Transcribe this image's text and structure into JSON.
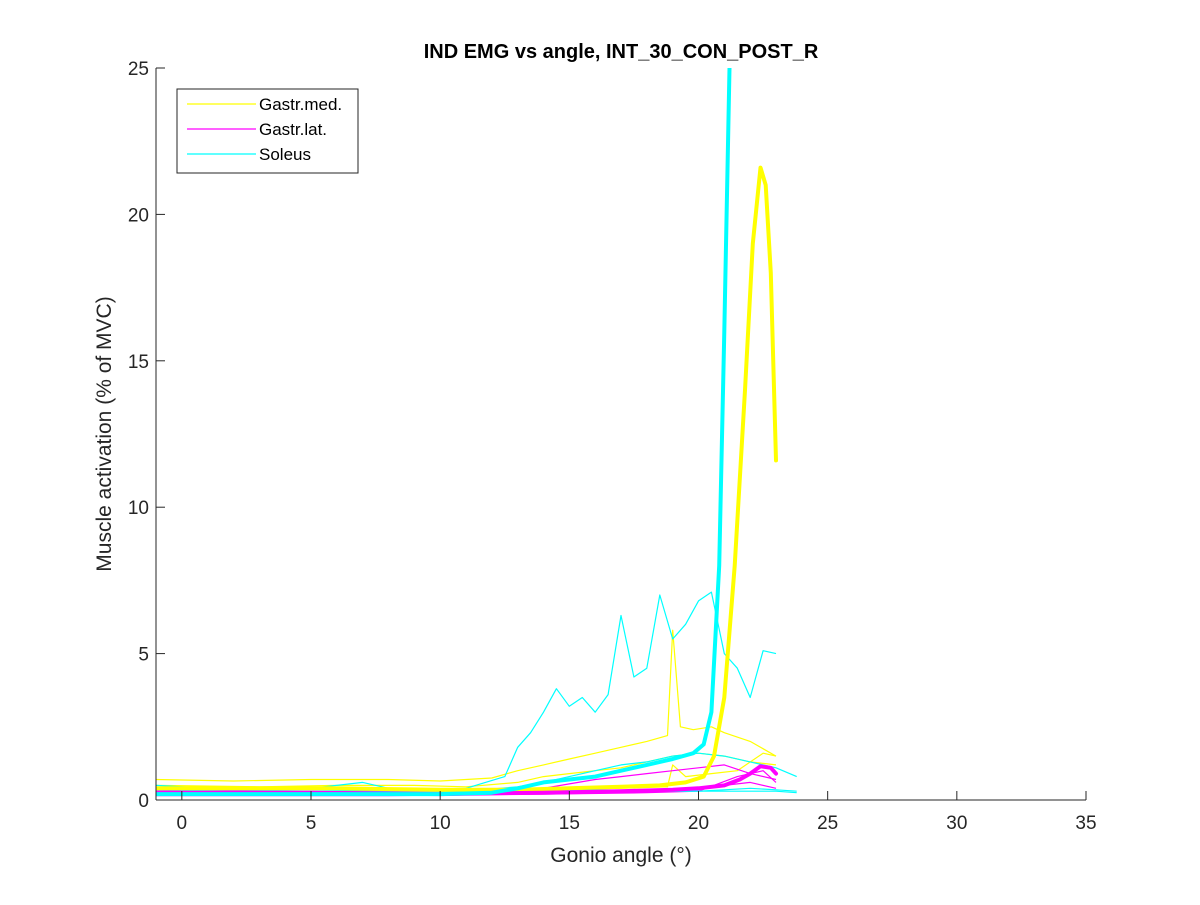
{
  "chart_data": {
    "type": "line",
    "title": "IND EMG vs angle, INT_30_CON_POST_R",
    "xlabel": "Gonio angle (°)",
    "ylabel": "Muscle activation (% of MVC)",
    "xlim": [
      -1,
      35
    ],
    "ylim": [
      0,
      25
    ],
    "x_ticks": [
      0,
      5,
      10,
      15,
      20,
      25,
      30,
      35
    ],
    "y_ticks": [
      0,
      5,
      10,
      15,
      20,
      25
    ],
    "grid": false,
    "legend_position": "top-left",
    "legend": [
      {
        "name": "Gastr.med.",
        "color": "#ffff00"
      },
      {
        "name": "Gastr.lat.",
        "color": "#ff00ff"
      },
      {
        "name": "Soleus",
        "color": "#00ffff"
      }
    ],
    "series": [
      {
        "name": "Gastr.med.",
        "color": "#ffff00",
        "style": "mean",
        "points": [
          [
            -1,
            0.4
          ],
          [
            2,
            0.4
          ],
          [
            6,
            0.4
          ],
          [
            10,
            0.35
          ],
          [
            13,
            0.35
          ],
          [
            15,
            0.4
          ],
          [
            17,
            0.45
          ],
          [
            18.5,
            0.5
          ],
          [
            19.5,
            0.6
          ],
          [
            20.2,
            0.8
          ],
          [
            20.6,
            1.5
          ],
          [
            21,
            3.5
          ],
          [
            21.4,
            8
          ],
          [
            21.8,
            14
          ],
          [
            22.1,
            19
          ],
          [
            22.4,
            21.6
          ],
          [
            22.6,
            21
          ],
          [
            22.8,
            18
          ],
          [
            23,
            11.6
          ]
        ]
      },
      {
        "name": "Gastr.lat.",
        "color": "#ff00ff",
        "style": "mean",
        "points": [
          [
            -1,
            0.25
          ],
          [
            5,
            0.25
          ],
          [
            10,
            0.2
          ],
          [
            14,
            0.25
          ],
          [
            17,
            0.3
          ],
          [
            19,
            0.35
          ],
          [
            20,
            0.4
          ],
          [
            21,
            0.5
          ],
          [
            21.6,
            0.7
          ],
          [
            22,
            0.9
          ],
          [
            22.4,
            1.15
          ],
          [
            22.8,
            1.1
          ],
          [
            23,
            0.9
          ]
        ]
      },
      {
        "name": "Soleus",
        "color": "#00ffff",
        "style": "mean",
        "points": [
          [
            -1,
            0.2
          ],
          [
            5,
            0.2
          ],
          [
            10,
            0.2
          ],
          [
            12,
            0.25
          ],
          [
            13,
            0.4
          ],
          [
            14,
            0.6
          ],
          [
            15,
            0.7
          ],
          [
            16,
            0.8
          ],
          [
            17,
            1.0
          ],
          [
            18,
            1.2
          ],
          [
            19,
            1.4
          ],
          [
            19.8,
            1.6
          ],
          [
            20.2,
            1.9
          ],
          [
            20.5,
            3
          ],
          [
            20.8,
            8
          ],
          [
            21.0,
            16
          ],
          [
            21.2,
            25
          ]
        ]
      }
    ],
    "trials": [
      {
        "series": "Gastr.med.",
        "color": "#ffff00",
        "points": [
          [
            -1,
            0.7
          ],
          [
            2,
            0.65
          ],
          [
            5,
            0.7
          ],
          [
            8,
            0.7
          ],
          [
            10,
            0.65
          ],
          [
            12,
            0.75
          ],
          [
            13,
            1.0
          ],
          [
            14,
            1.2
          ],
          [
            15,
            1.4
          ],
          [
            16,
            1.6
          ],
          [
            17,
            1.8
          ],
          [
            18,
            2.0
          ],
          [
            18.8,
            2.2
          ],
          [
            19,
            5.8
          ],
          [
            19.3,
            2.5
          ],
          [
            19.8,
            2.4
          ],
          [
            20.5,
            2.5
          ],
          [
            21,
            2.3
          ],
          [
            22,
            2.0
          ],
          [
            23,
            1.5
          ]
        ]
      },
      {
        "series": "Gastr.med.",
        "color": "#ffff00",
        "points": [
          [
            -1,
            0.5
          ],
          [
            3,
            0.45
          ],
          [
            6,
            0.5
          ],
          [
            9,
            0.5
          ],
          [
            11,
            0.45
          ],
          [
            13,
            0.6
          ],
          [
            14,
            0.8
          ],
          [
            15,
            0.9
          ],
          [
            16,
            1.0
          ],
          [
            17,
            1.1
          ],
          [
            18,
            1.3
          ],
          [
            19,
            1.5
          ],
          [
            20,
            1.6
          ],
          [
            21,
            1.5
          ],
          [
            22,
            1.3
          ],
          [
            23,
            1.2
          ]
        ]
      },
      {
        "series": "Gastr.med.",
        "color": "#ffff00",
        "points": [
          [
            -1,
            0.3
          ],
          [
            5,
            0.3
          ],
          [
            10,
            0.3
          ],
          [
            14,
            0.35
          ],
          [
            17,
            0.4
          ],
          [
            18.8,
            0.45
          ],
          [
            19,
            1.2
          ],
          [
            19.5,
            0.8
          ],
          [
            20.5,
            0.9
          ],
          [
            21.5,
            1.0
          ],
          [
            22.5,
            1.6
          ],
          [
            23,
            1.5
          ]
        ]
      },
      {
        "series": "Gastr.lat.",
        "color": "#ff00ff",
        "points": [
          [
            -1,
            0.35
          ],
          [
            5,
            0.3
          ],
          [
            10,
            0.3
          ],
          [
            14,
            0.4
          ],
          [
            15,
            0.55
          ],
          [
            16,
            0.7
          ],
          [
            17,
            0.8
          ],
          [
            18,
            0.9
          ],
          [
            19,
            1.0
          ],
          [
            20,
            1.1
          ],
          [
            21,
            1.2
          ],
          [
            22,
            0.9
          ],
          [
            23,
            0.7
          ]
        ]
      },
      {
        "series": "Gastr.lat.",
        "color": "#ff00ff",
        "points": [
          [
            -1,
            0.2
          ],
          [
            6,
            0.2
          ],
          [
            12,
            0.2
          ],
          [
            15,
            0.25
          ],
          [
            18,
            0.3
          ],
          [
            20,
            0.35
          ],
          [
            21,
            0.5
          ],
          [
            22,
            0.6
          ],
          [
            23,
            0.4
          ]
        ]
      },
      {
        "series": "Gastr.lat.",
        "color": "#ff00ff",
        "points": [
          [
            -1,
            0.15
          ],
          [
            8,
            0.15
          ],
          [
            14,
            0.2
          ],
          [
            18,
            0.25
          ],
          [
            20,
            0.3
          ],
          [
            21.5,
            0.8
          ],
          [
            22.5,
            1.0
          ],
          [
            23,
            0.6
          ]
        ]
      },
      {
        "series": "Soleus",
        "color": "#00ffff",
        "points": [
          [
            -1,
            0.3
          ],
          [
            2,
            0.35
          ],
          [
            5,
            0.3
          ],
          [
            8,
            0.35
          ],
          [
            11,
            0.4
          ],
          [
            12.5,
            0.8
          ],
          [
            13,
            1.8
          ],
          [
            13.5,
            2.3
          ],
          [
            14,
            3.0
          ],
          [
            14.5,
            3.8
          ],
          [
            15,
            3.2
          ],
          [
            15.5,
            3.5
          ],
          [
            16,
            3.0
          ],
          [
            16.5,
            3.6
          ],
          [
            17,
            6.3
          ],
          [
            17.5,
            4.2
          ],
          [
            18,
            4.5
          ],
          [
            18.5,
            7.0
          ],
          [
            19,
            5.5
          ],
          [
            19.5,
            6.0
          ],
          [
            20,
            6.8
          ],
          [
            20.5,
            7.1
          ],
          [
            21,
            5.0
          ],
          [
            21.5,
            4.5
          ],
          [
            22,
            3.5
          ],
          [
            22.5,
            5.1
          ],
          [
            23,
            5.0
          ]
        ]
      },
      {
        "series": "Soleus",
        "color": "#00ffff",
        "points": [
          [
            -1,
            0.25
          ],
          [
            4,
            0.25
          ],
          [
            8,
            0.3
          ],
          [
            11,
            0.3
          ],
          [
            13,
            0.45
          ],
          [
            14,
            0.6
          ],
          [
            15,
            0.8
          ],
          [
            16,
            1.0
          ],
          [
            17,
            1.2
          ],
          [
            18,
            1.3
          ],
          [
            19,
            1.5
          ],
          [
            20,
            1.6
          ],
          [
            21,
            1.5
          ],
          [
            22,
            1.3
          ],
          [
            23,
            1.1
          ],
          [
            23.8,
            0.8
          ]
        ]
      },
      {
        "series": "Soleus",
        "color": "#00ffff",
        "points": [
          [
            -1,
            0.2
          ],
          [
            6,
            0.2
          ],
          [
            12,
            0.2
          ],
          [
            15,
            0.25
          ],
          [
            18,
            0.3
          ],
          [
            20,
            0.3
          ],
          [
            21,
            0.35
          ],
          [
            22,
            0.4
          ],
          [
            23,
            0.35
          ],
          [
            23.8,
            0.3
          ]
        ]
      },
      {
        "series": "Soleus",
        "color": "#00ffff",
        "points": [
          [
            -1,
            0.5
          ],
          [
            1,
            0.4
          ],
          [
            3,
            0.35
          ],
          [
            5,
            0.4
          ],
          [
            7,
            0.6
          ],
          [
            8,
            0.4
          ],
          [
            10,
            0.3
          ],
          [
            13,
            0.3
          ],
          [
            16,
            0.35
          ],
          [
            19,
            0.3
          ],
          [
            21,
            0.3
          ],
          [
            23,
            0.3
          ],
          [
            23.8,
            0.25
          ]
        ]
      }
    ]
  }
}
